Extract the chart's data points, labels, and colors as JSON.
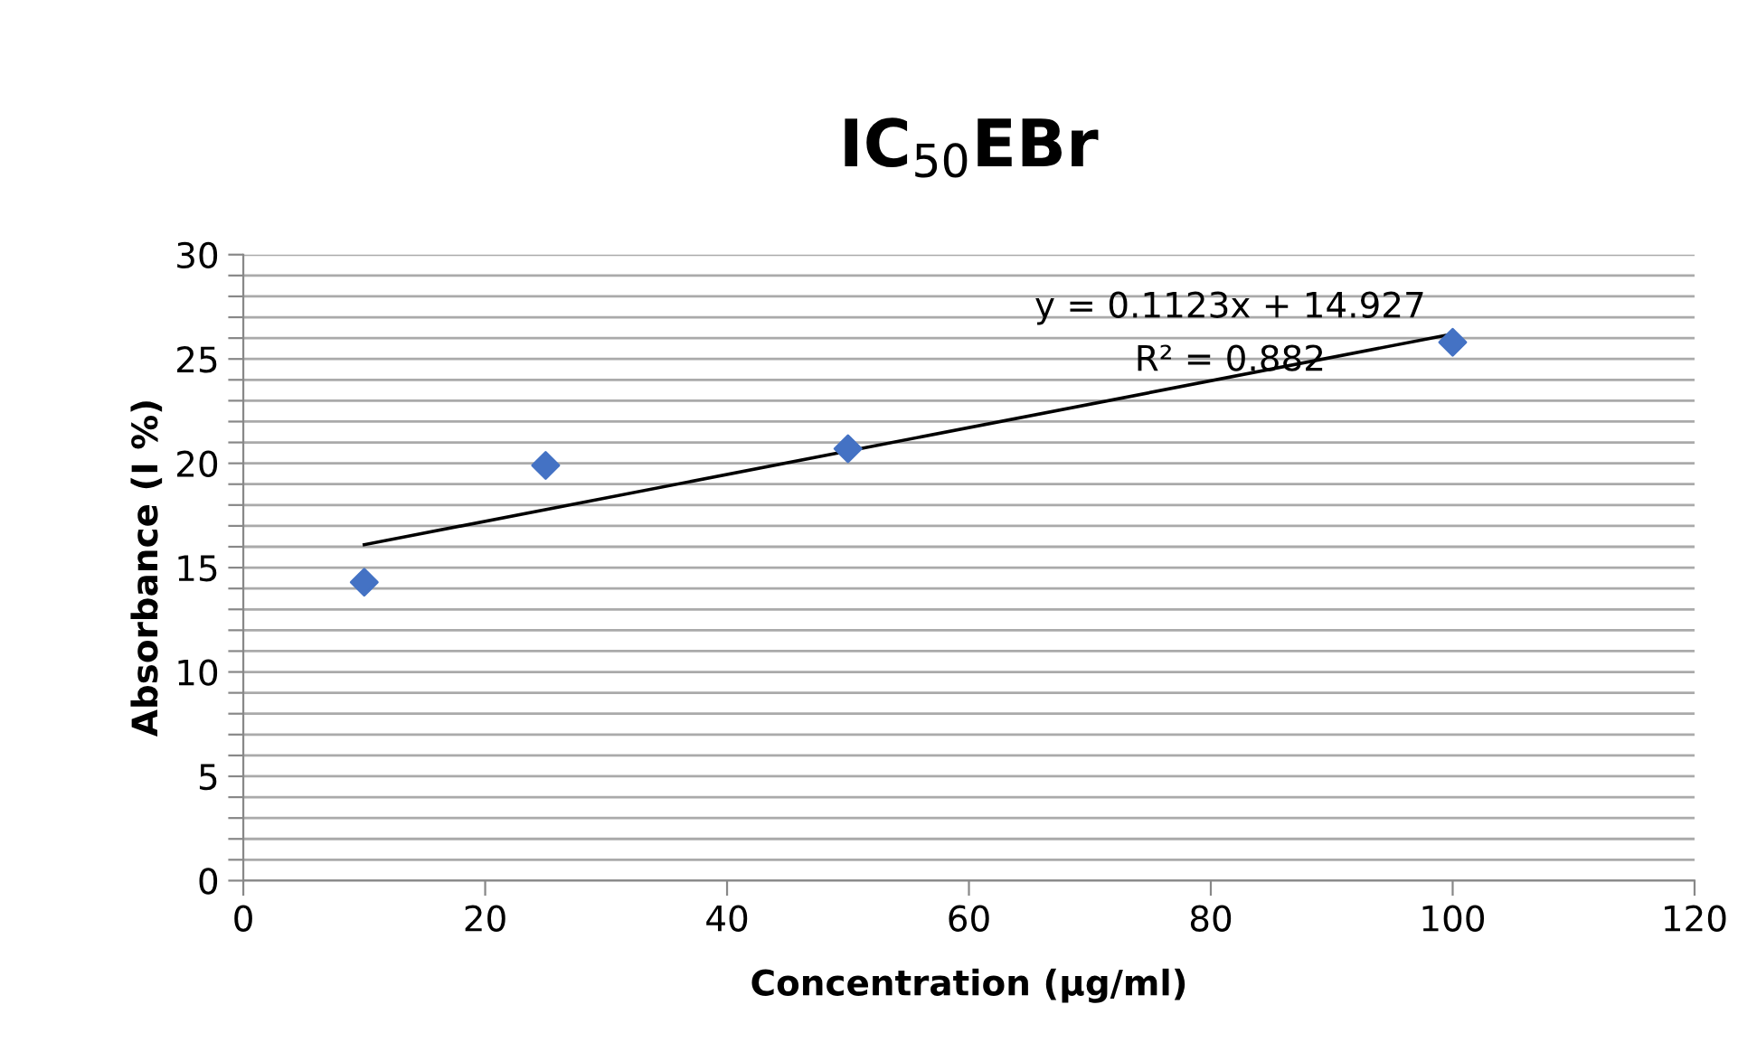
{
  "chart_data": {
    "type": "scatter",
    "title": "IC$_{50}$EBr",
    "xlabel": "Concentration (µg/ml)",
    "ylabel": "Absorbance (I %)",
    "xlim": [
      0,
      120
    ],
    "xticks": [
      0,
      20,
      40,
      60,
      80,
      100,
      120
    ],
    "ylim": [
      0,
      30
    ],
    "yticks": [
      0,
      {
        "value": 1,
        "label": null
      },
      {
        "value": 2,
        "label": null
      },
      {
        "value": 3,
        "label": null
      },
      {
        "value": 4,
        "label": null
      },
      5,
      {
        "value": 6,
        "label": null
      },
      {
        "value": 7,
        "label": null
      },
      {
        "value": 8,
        "label": null
      },
      {
        "value": 9,
        "label": null
      },
      10,
      {
        "value": 11,
        "label": null
      },
      {
        "value": 12,
        "label": null
      },
      {
        "value": 13,
        "label": null
      },
      {
        "value": 14,
        "label": null
      },
      15,
      {
        "value": 16,
        "label": null
      },
      {
        "value": 17,
        "label": null
      },
      {
        "value": 18,
        "label": null
      },
      {
        "value": 19,
        "label": null
      },
      20,
      {
        "value": 21,
        "label": null
      },
      {
        "value": 22,
        "label": null
      },
      {
        "value": 23,
        "label": null
      },
      {
        "value": 24,
        "label": null
      },
      25,
      {
        "value": 26,
        "label": null
      },
      {
        "value": 27,
        "label": null
      },
      {
        "value": 28,
        "label": null
      },
      {
        "value": 29,
        "label": null
      },
      30
    ],
    "grid": "y",
    "series": [
      {
        "marker": "diamond",
        "color": "#4472c4",
        "x": [
          10,
          25,
          50,
          100
        ],
        "values": [
          14.3,
          19.9,
          20.7,
          25.8
        ]
      },
      {
        "type": "line",
        "marker": "none",
        "line_style": "solid",
        "color": "#000000",
        "x": [
          10,
          100
        ],
        "values": [
          16.1,
          26.2
        ]
      }
    ],
    "annotations": [
      "y = 0.1123x + 14.927",
      "R² = 0.882"
    ]
  }
}
